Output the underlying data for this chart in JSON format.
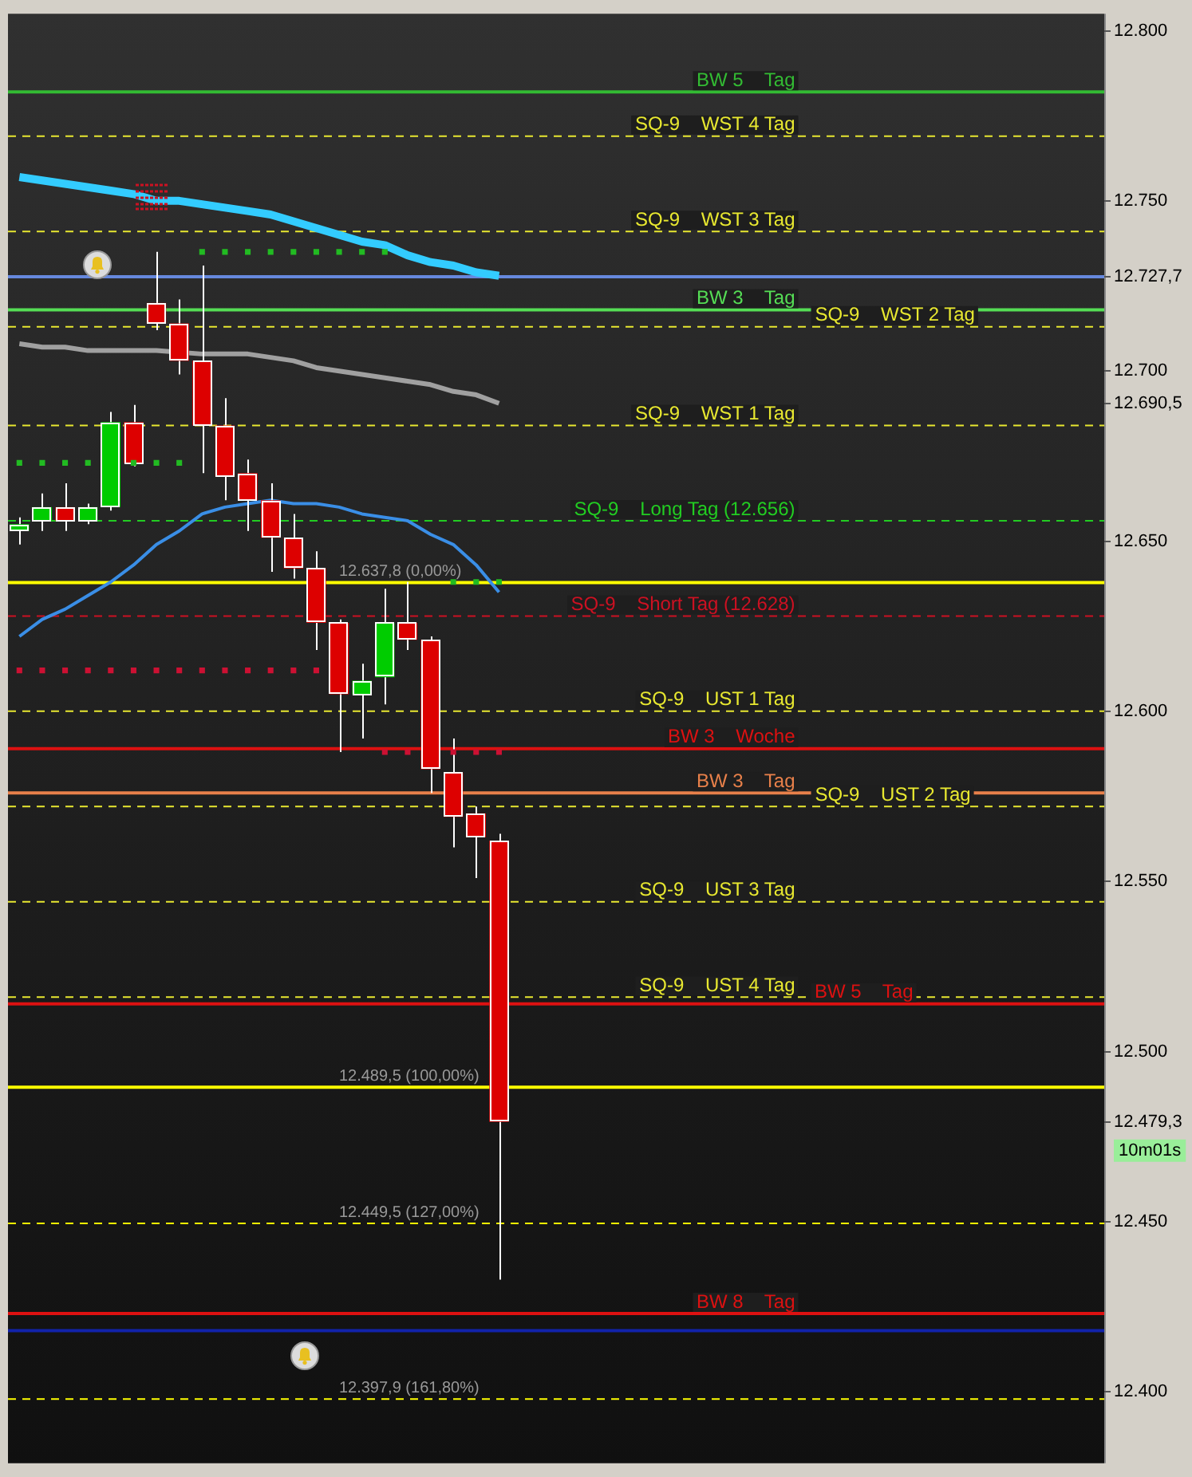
{
  "chart_data": {
    "type": "candlestick",
    "tick_labels": "y",
    "grid": false,
    "legend": false,
    "categories": [
      null,
      null,
      null,
      null,
      null,
      null,
      null,
      null,
      null,
      null,
      null,
      null,
      null,
      null,
      null,
      null,
      null,
      null,
      null,
      null,
      null,
      null,
      null,
      null,
      null,
      null,
      null,
      null,
      null,
      null,
      null,
      null,
      null,
      null,
      null,
      null,
      null,
      null,
      null,
      null,
      null,
      null,
      null,
      null,
      null,
      null,
      null,
      null
    ],
    "ohlc": [
      [
        12653,
        12657,
        12649,
        12655
      ],
      [
        12656,
        12664,
        12653,
        12660
      ],
      [
        12660,
        12667,
        12653,
        12656
      ],
      [
        12656,
        12661,
        12655,
        12660
      ],
      [
        12660,
        12688,
        12659,
        12685
      ],
      [
        12685,
        12690,
        12672,
        12673
      ],
      [
        12720,
        12735,
        12712,
        12714
      ],
      [
        12714,
        12721,
        12699,
        12703
      ],
      [
        12703,
        12731,
        12670,
        12684
      ],
      [
        12684,
        12692,
        12662,
        12669
      ],
      [
        12670,
        12674,
        12653,
        12662
      ],
      [
        12662,
        12667,
        12641,
        12651
      ],
      [
        12651,
        12658,
        12639,
        12642
      ],
      [
        12642,
        12647,
        12618,
        12626
      ],
      [
        12626,
        12627,
        12588,
        12605
      ],
      [
        12605,
        12614,
        12592,
        12609
      ],
      [
        12610,
        12636,
        12602,
        12626
      ],
      [
        12626,
        12638,
        12618,
        12621
      ],
      [
        12621,
        12622,
        12576,
        12583
      ],
      [
        12582,
        12592,
        12560,
        12569
      ],
      [
        12570,
        12572,
        12551,
        12563
      ],
      [
        12562,
        12564,
        12433,
        12479.3
      ],
      null,
      null,
      null,
      null,
      null,
      null,
      null,
      null,
      null,
      null,
      null,
      null,
      null,
      null,
      null,
      null,
      null,
      null,
      null,
      null,
      null,
      null,
      null,
      null,
      null,
      null
    ],
    "colors": [
      "#00cc00",
      "#00cc00",
      "#dd0000",
      "#00cc00",
      "#00cc00",
      "#dd0000",
      "#dd0000",
      "#dd0000",
      "#dd0000",
      "#dd0000",
      "#dd0000",
      "#dd0000",
      "#dd0000",
      "#dd0000",
      "#dd0000",
      "#00cc00",
      "#00cc00",
      "#dd0000",
      "#dd0000",
      "#dd0000",
      "#dd0000",
      "#dd0000",
      null,
      null,
      null,
      null,
      null,
      null,
      null,
      null,
      null,
      null,
      null,
      null,
      null,
      null,
      null,
      null,
      null,
      null,
      null,
      null,
      null,
      null,
      null,
      null,
      null,
      null
    ],
    "series": [
      {
        "type": "line",
        "color": "#33ccff",
        "values": [
          12757,
          12756,
          12755,
          12754,
          12753,
          12752,
          12750,
          12750,
          12749,
          12748,
          12747,
          12746,
          12744,
          12742,
          12740,
          12738,
          12737,
          12734,
          12732,
          12731,
          12729,
          12728,
          null,
          null,
          null,
          null,
          null,
          null,
          null,
          null,
          null,
          null,
          null,
          null,
          null,
          null,
          null,
          null,
          null,
          null,
          null,
          null,
          null,
          null,
          null,
          null,
          null,
          null
        ]
      },
      {
        "type": "line",
        "color": "#a0a0a0",
        "values": [
          12708,
          12707,
          12707,
          12706,
          12706,
          12706,
          12706,
          null,
          12705,
          12705,
          12705,
          12704,
          12703,
          12701,
          12700,
          12699,
          12698,
          12697,
          12696,
          12694,
          12693,
          12690.5,
          null,
          null,
          null,
          null,
          null,
          null,
          null,
          null,
          null,
          null,
          null,
          null,
          null,
          null,
          null,
          null,
          null,
          null,
          null,
          null,
          null,
          null,
          null,
          null,
          null,
          null
        ]
      },
      {
        "type": "line",
        "color": "#3a8ee6",
        "values": [
          12622,
          12627,
          12630,
          12634,
          12638,
          12643,
          12649,
          12653,
          12658,
          12660,
          12661,
          12662,
          12661,
          12661,
          12660,
          12658,
          12657,
          12656,
          12652,
          12649,
          12643,
          12635,
          null,
          null,
          null,
          null,
          null,
          null,
          null,
          null,
          null,
          null,
          null,
          null,
          null,
          null,
          null,
          null,
          null,
          null,
          null,
          null,
          null,
          null,
          null,
          null,
          null,
          null
        ]
      },
      {
        "type": "scatter",
        "color": "#22bb22",
        "marker": "square",
        "values": [
          12673,
          12673,
          12673,
          12673,
          null,
          12673,
          12673,
          12673,
          12735,
          12735,
          12735,
          12735,
          12735,
          12735,
          12735,
          12735,
          12735,
          null,
          null,
          12638,
          12638,
          12638,
          null,
          null,
          null,
          null,
          null,
          null,
          null,
          null,
          null,
          null,
          null,
          null,
          null,
          null,
          null,
          null,
          null,
          null,
          null,
          null,
          null,
          null,
          null,
          null,
          null,
          null
        ]
      },
      {
        "type": "scatter",
        "color": "#cc1133",
        "marker": "square",
        "values": [
          12612,
          12612,
          12612,
          12612,
          12612,
          12612,
          12612,
          12612,
          12612,
          12612,
          12612,
          12612,
          12612,
          12612,
          null,
          null,
          12588,
          12588,
          null,
          12588,
          12588,
          12588,
          null,
          null,
          null,
          null,
          null,
          null,
          null,
          null,
          null,
          null,
          null,
          null,
          null,
          null,
          null,
          null,
          null,
          null,
          null,
          null,
          null,
          null,
          null,
          null,
          null,
          null
        ]
      }
    ],
    "ylim": [
      12379,
      12805
    ],
    "yticks": [
      {
        "value": 12400,
        "label": "12.400"
      },
      {
        "value": 12450,
        "label": "12.450"
      },
      {
        "value": 12479.3,
        "label": "12.479,3"
      },
      {
        "value": 12500,
        "label": "12.500"
      },
      {
        "value": 12550,
        "label": "12.550"
      },
      {
        "value": 12600,
        "label": "12.600"
      },
      {
        "value": 12650,
        "label": "12.650"
      },
      {
        "value": 12690.5,
        "label": "12.690,5"
      },
      {
        "value": 12700,
        "label": "12.700"
      },
      {
        "value": 12727.7,
        "label": "12.727,7"
      },
      {
        "value": 12750,
        "label": "12.750"
      },
      {
        "value": 12800,
        "label": "12.800"
      }
    ],
    "ref_lines": [
      {
        "axis": "y",
        "value": 12782,
        "label": "BW 5    Tag",
        "color": "#33bb33"
      },
      {
        "axis": "y",
        "value": 12769,
        "label": "SQ-9    WST 4 Tag",
        "color": "#e8e830",
        "line_style": "dashed"
      },
      {
        "axis": "y",
        "value": 12741,
        "label": "SQ-9    WST 3 Tag",
        "color": "#e8e830",
        "line_style": "dashed"
      },
      {
        "axis": "y",
        "value": 12727.7,
        "color": "#6688dd"
      },
      {
        "axis": "y",
        "value": 12718,
        "label": "BW 3    Tag",
        "color": "#55dd55"
      },
      {
        "axis": "y",
        "value": 12713,
        "label": "SQ-9    WST 2 Tag",
        "color": "#e8e830",
        "line_style": "dashed"
      },
      {
        "axis": "y",
        "value": 12684,
        "label": "SQ-9    WST 1 Tag",
        "color": "#e8e830",
        "line_style": "dashed"
      },
      {
        "axis": "y",
        "value": 12656,
        "label": "SQ-9    Long Tag (12.656)",
        "color": "#22cc22",
        "line_style": "dashed"
      },
      {
        "axis": "y",
        "value": 12637.8,
        "color": "#ffff00"
      },
      {
        "axis": "y",
        "value": 12628,
        "label": "SQ-9    Short Tag (12.628)",
        "color": "#cc1122",
        "line_style": "dashed"
      },
      {
        "axis": "y",
        "value": 12600,
        "label": "SQ-9    UST 1 Tag",
        "color": "#e8e830",
        "line_style": "dashed"
      },
      {
        "axis": "y",
        "value": 12589,
        "label": "BW 3    Woche",
        "color": "#dd1111"
      },
      {
        "axis": "y",
        "value": 12576,
        "label": "BW 3    Tag",
        "color": "#e8804a"
      },
      {
        "axis": "y",
        "value": 12572,
        "label": "SQ-9    UST 2 Tag",
        "color": "#e8e830",
        "line_style": "dashed"
      },
      {
        "axis": "y",
        "value": 12544,
        "label": "SQ-9    UST 3 Tag",
        "color": "#e8e830",
        "line_style": "dashed"
      },
      {
        "axis": "y",
        "value": 12516,
        "label": "SQ-9    UST 4 Tag",
        "color": "#e8e830",
        "line_style": "dashed"
      },
      {
        "axis": "y",
        "value": 12514,
        "label": "BW 5    Tag",
        "color": "#dd1111"
      },
      {
        "axis": "y",
        "value": 12489.5,
        "color": "#ffff00"
      },
      {
        "axis": "y",
        "value": 12449.5,
        "color": "#ffff00",
        "line_style": "dashed"
      },
      {
        "axis": "y",
        "value": 12423,
        "label": "BW 8    Tag",
        "color": "#dd1111"
      },
      {
        "axis": "y",
        "value": 12418,
        "color": "#1122aa"
      },
      {
        "axis": "y",
        "value": 12397.9,
        "color": "#ffff00",
        "line_style": "dashed"
      }
    ],
    "annotations": [
      {
        "text": "12.637,8 (0,00%)",
        "y": 12637.8
      },
      {
        "text": "12.489,5 (100,00%)",
        "y": 12489.5
      },
      {
        "text": "12.449,5 (127,00%)",
        "y": 12449.5
      },
      {
        "text": "12.397,9 (161,80%)",
        "y": 12397.9
      },
      "10m01s"
    ]
  }
}
